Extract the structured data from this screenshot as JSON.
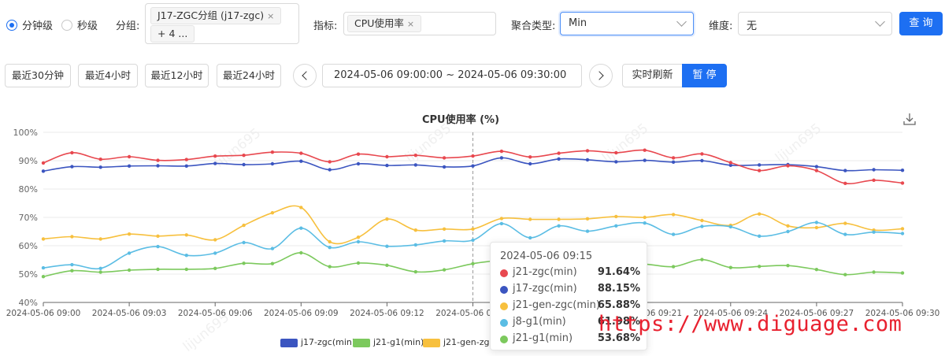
{
  "filters": {
    "granularity": [
      {
        "label": "分钟级",
        "selected": true
      },
      {
        "label": "秒级",
        "selected": false
      }
    ],
    "group_label": "分组:",
    "group_tags": [
      "J17-ZGC分组 (j17-zgc)",
      "+ 4 ..."
    ],
    "metric_label": "指标:",
    "metric_tag": "CPU使用率",
    "agg_label": "聚合类型:",
    "agg_value": "Min",
    "dim_label": "维度:",
    "dim_value": "无",
    "query_button": "查 询",
    "tag_close": "×"
  },
  "time_bar": {
    "quick": [
      "最近30分钟",
      "最近4小时",
      "最近12小时",
      "最近24小时"
    ],
    "range": "2024-05-06 09:00:00 ~ 2024-05-06 09:30:00",
    "refresh": "实时刷新",
    "pause": "暂 停"
  },
  "colors": {
    "accent": "#1d6ff2",
    "j21-zgc(min)": "#e8484f",
    "j17-zgc(min)": "#3b55c0",
    "j21-gen-zgc(min)": "#f7c03e",
    "j8-g1(min)": "#5bbde4",
    "j21-g1(min)": "#7cc95d"
  },
  "chart_data": {
    "type": "line",
    "title": "CPU使用率 (%)",
    "xlabel": "",
    "ylabel": "",
    "ylim": [
      40,
      100
    ],
    "yticks": [
      "40%",
      "50%",
      "60%",
      "70%",
      "80%",
      "90%",
      "100%"
    ],
    "xtick_labels": [
      "2024-05-06 09:00",
      "2024-05-06 09:03",
      "2024-05-06 09:06",
      "2024-05-06 09:09",
      "2024-05-06 09:12",
      "2024-05-06 09:15",
      "2024-05-06 09:18",
      "2024-05-06 09:21",
      "2024-05-06 09:24",
      "2024-05-06 09:27",
      "2024-05-06 09:30"
    ],
    "x_minutes": [
      0,
      1,
      2,
      3,
      4,
      5,
      6,
      7,
      8,
      9,
      10,
      11,
      12,
      13,
      14,
      15,
      16,
      17,
      18,
      19,
      20,
      21,
      22,
      23,
      24,
      25,
      26,
      27,
      28,
      29,
      30
    ],
    "grid": true,
    "legend_position": "bottom",
    "series": [
      {
        "name": "j21-zgc(min)",
        "color": "#e8484f",
        "values": [
          89.2,
          92.8,
          90.5,
          91.4,
          90.1,
          90.4,
          91.6,
          91.9,
          93.0,
          92.6,
          89.6,
          92.3,
          91.4,
          91.9,
          91.0,
          91.64,
          93.3,
          91.3,
          92.6,
          93.5,
          92.8,
          93.7,
          91.0,
          92.4,
          89.3,
          86.5,
          88.2,
          86.5,
          82.0,
          83.1,
          82.1
        ]
      },
      {
        "name": "j17-zgc(min)",
        "color": "#3b55c0",
        "values": [
          86.3,
          87.9,
          87.7,
          88.1,
          88.2,
          88.1,
          89.0,
          88.6,
          88.9,
          89.8,
          86.8,
          88.9,
          88.3,
          88.5,
          87.8,
          88.15,
          91.0,
          88.9,
          90.6,
          90.3,
          89.6,
          90.1,
          89.5,
          90.0,
          88.4,
          88.5,
          88.6,
          87.9,
          86.5,
          86.8,
          86.6
        ]
      },
      {
        "name": "j21-gen-zgc(min)",
        "color": "#f7c03e",
        "values": [
          62.4,
          63.2,
          62.4,
          64.1,
          63.4,
          63.8,
          62.1,
          67.2,
          71.6,
          73.5,
          61.4,
          63.0,
          69.4,
          65.5,
          65.9,
          65.88,
          69.6,
          69.3,
          69.3,
          69.5,
          70.3,
          70.0,
          71.0,
          68.9,
          67.2,
          71.2,
          67.0,
          66.4,
          67.9,
          65.5,
          66.0
        ]
      },
      {
        "name": "j8-g1(min)",
        "color": "#5bbde4",
        "values": [
          52.2,
          53.3,
          52.0,
          57.4,
          59.7,
          56.6,
          57.4,
          61.1,
          59.0,
          66.2,
          59.4,
          61.4,
          59.8,
          60.3,
          61.7,
          61.98,
          67.8,
          62.8,
          67.0,
          65.1,
          67.0,
          68.0,
          64.0,
          66.8,
          66.7,
          63.4,
          65.0,
          68.2,
          64.0,
          64.8,
          64.3
        ]
      },
      {
        "name": "j21-g1(min)",
        "color": "#7cc95d",
        "values": [
          49.1,
          51.2,
          50.7,
          51.4,
          51.7,
          51.7,
          52.0,
          53.8,
          53.7,
          57.5,
          52.6,
          53.9,
          53.1,
          50.8,
          51.5,
          53.68,
          54.9,
          55.6,
          55.8,
          56.2,
          53.0,
          53.5,
          52.6,
          55.1,
          52.3,
          52.7,
          53.0,
          51.6,
          49.8,
          50.7,
          50.4
        ]
      }
    ],
    "legend": [
      "j17-zgc(min)",
      "j21-g1(min)",
      "j21-gen-zgc(min)"
    ],
    "tooltip": {
      "title": "2024-05-06 09:15",
      "rows": [
        {
          "name": "j21-zgc(min)",
          "value": "91.64%",
          "color": "#e8484f"
        },
        {
          "name": "j17-zgc(min)",
          "value": "88.15%",
          "color": "#3b55c0"
        },
        {
          "name": "j21-gen-zgc(min)",
          "value": "65.88%",
          "color": "#f7c03e"
        },
        {
          "name": "j8-g1(min)",
          "value": "61.98%",
          "color": "#5bbde4"
        },
        {
          "name": "j21-g1(min)",
          "value": "53.68%",
          "color": "#7cc95d"
        }
      ]
    }
  },
  "watermark": "https://www.diguage.com",
  "watermark_user": "lijun695"
}
